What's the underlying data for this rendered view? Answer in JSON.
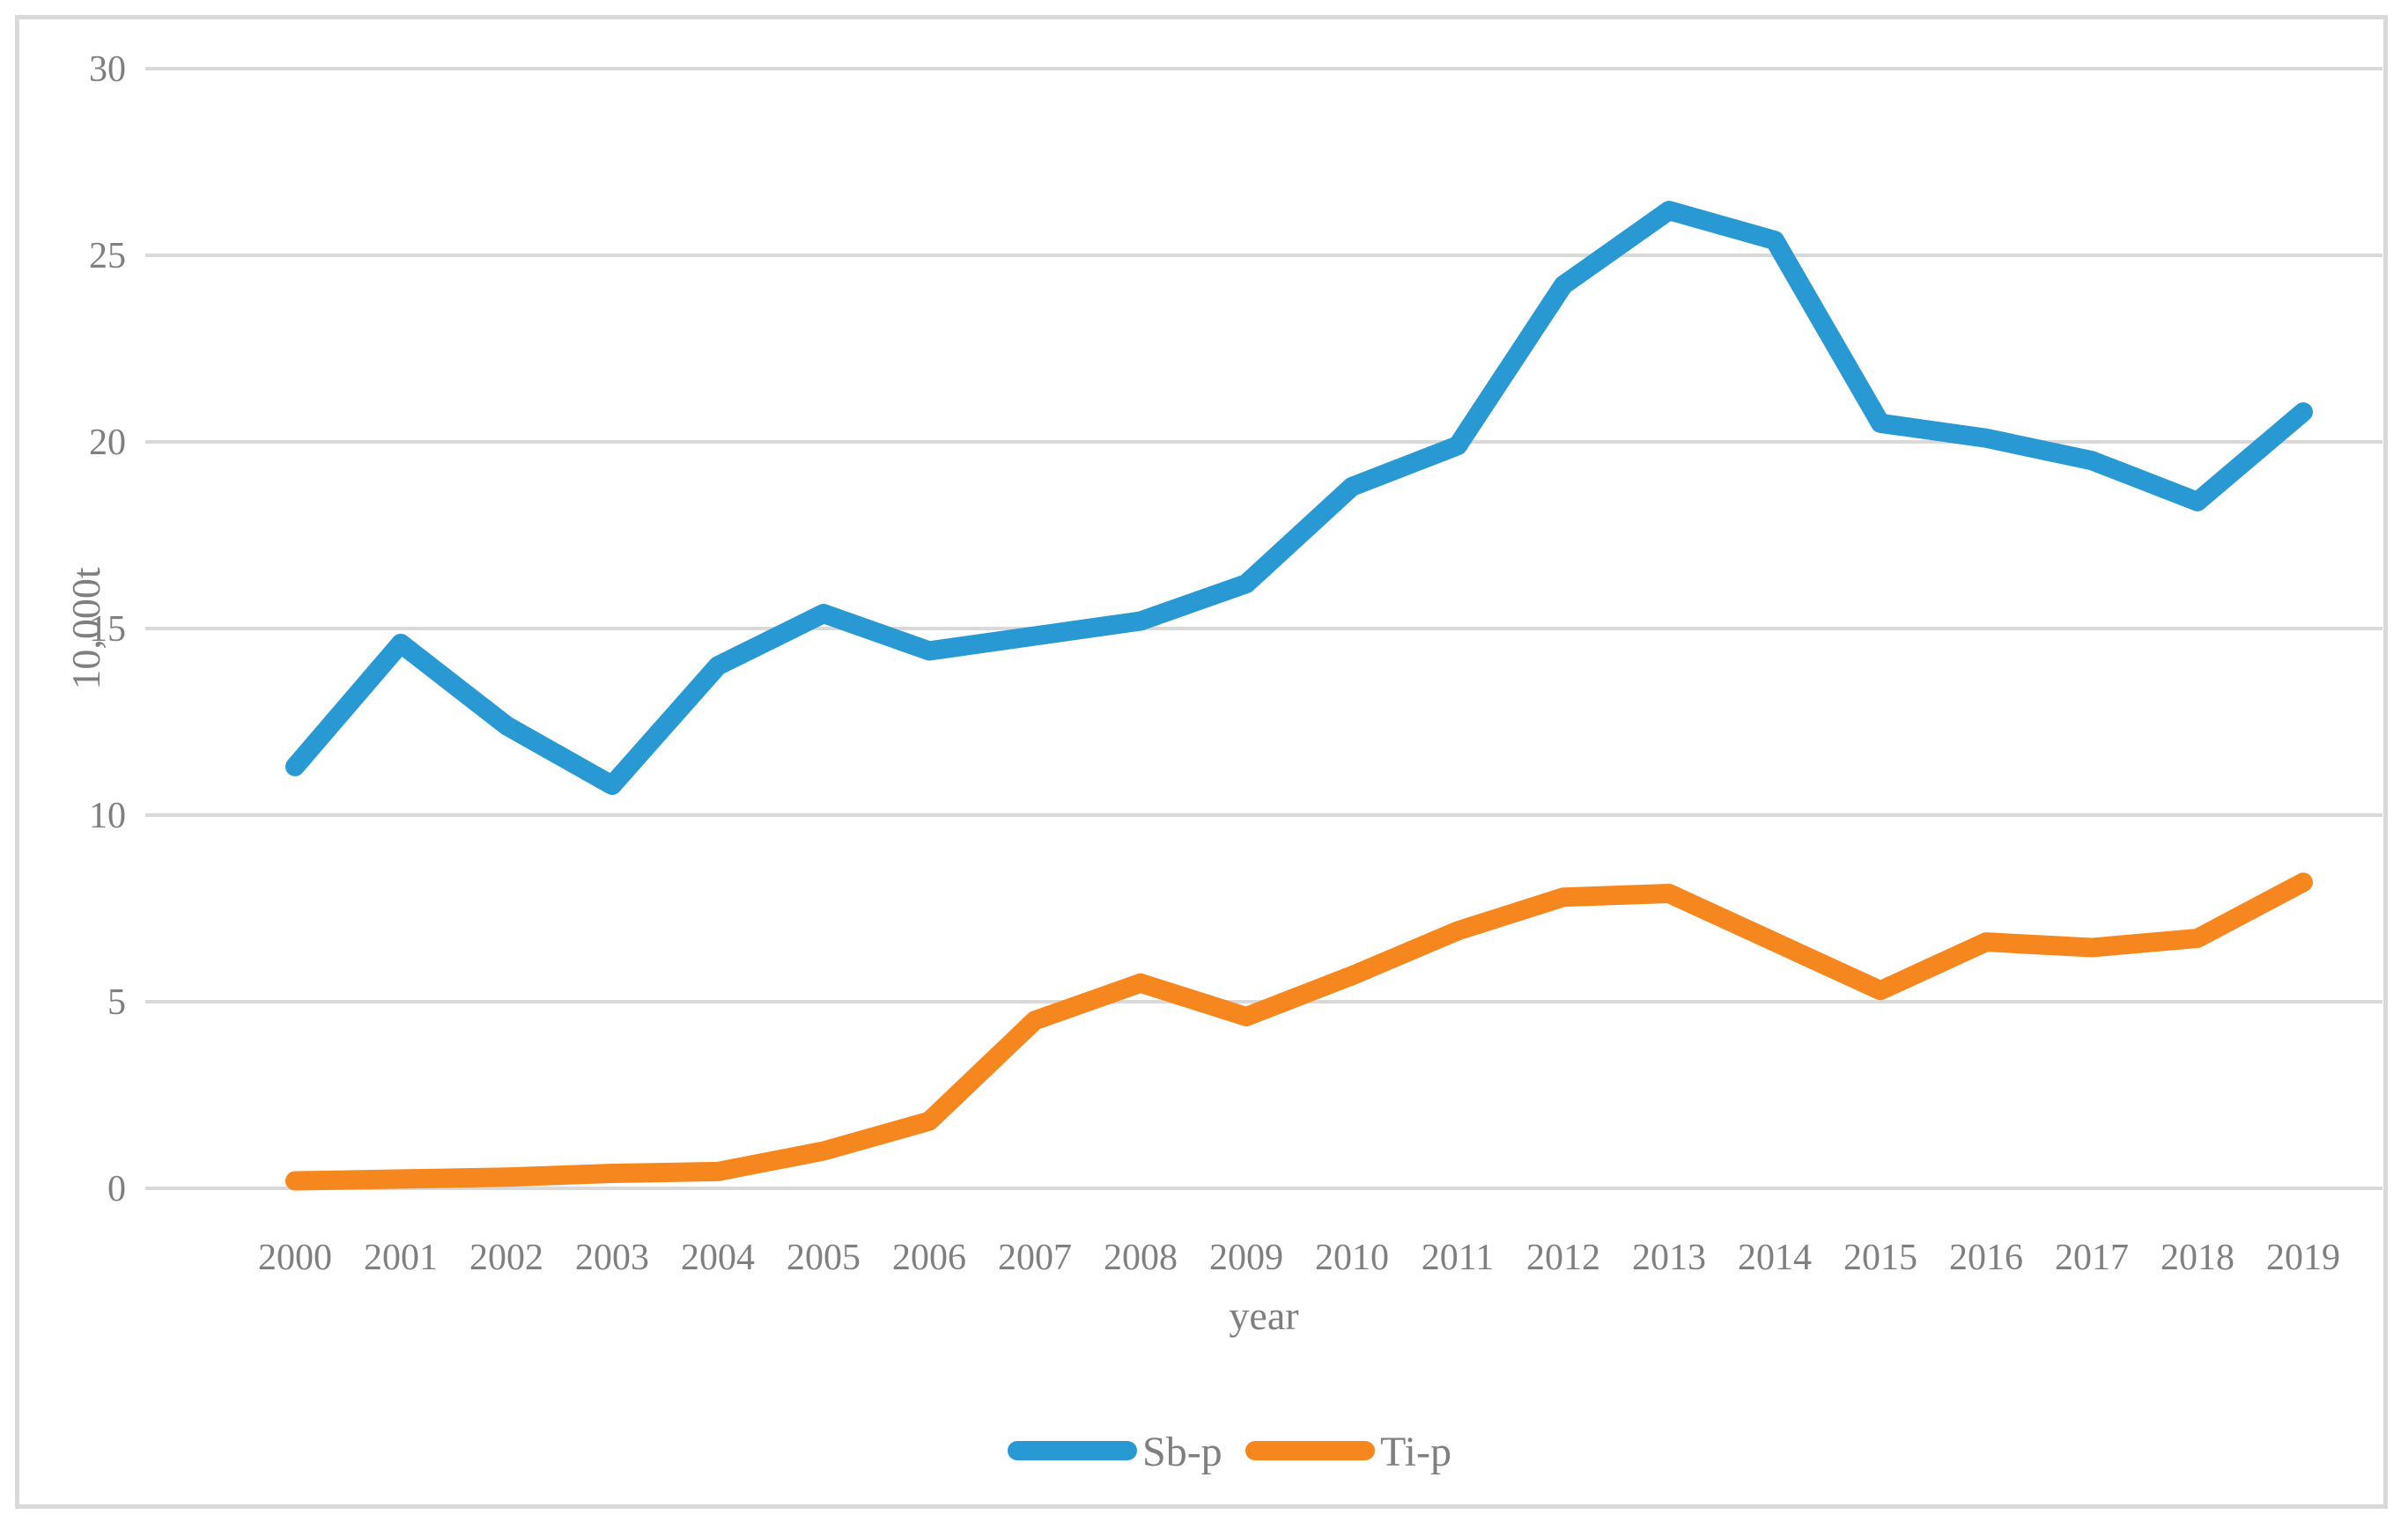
{
  "chart_data": {
    "type": "line",
    "title": "",
    "xlabel": "year",
    "ylabel": "10,000t",
    "ylim": [
      0,
      30
    ],
    "ytick_step": 5,
    "grid": "horizontal",
    "legend_position": "bottom",
    "categories": [
      2000,
      2001,
      2002,
      2003,
      2004,
      2005,
      2006,
      2007,
      2008,
      2009,
      2010,
      2011,
      2012,
      2013,
      2014,
      2015,
      2016,
      2017,
      2018,
      2019
    ],
    "series": [
      {
        "name": "Sb-p",
        "color": "#2999D4",
        "values": [
          11.3,
          14.6,
          12.4,
          10.8,
          14.0,
          15.4,
          14.4,
          14.8,
          15.2,
          16.2,
          18.8,
          19.9,
          24.2,
          26.2,
          25.4,
          20.5,
          20.1,
          19.5,
          18.4,
          20.8
        ]
      },
      {
        "name": "Ti-p",
        "color": "#F6871F",
        "values": [
          0.2,
          0.25,
          0.3,
          0.4,
          0.45,
          1.0,
          1.8,
          4.5,
          5.5,
          4.6,
          5.7,
          6.9,
          7.8,
          7.9,
          6.6,
          5.3,
          6.6,
          6.45,
          6.7,
          8.2
        ]
      }
    ],
    "colors": {
      "gridline": "#D9D9D9",
      "text": "#7F7F7F",
      "frame_border": "#D9D9D9",
      "background": "#FFFFFF"
    }
  }
}
